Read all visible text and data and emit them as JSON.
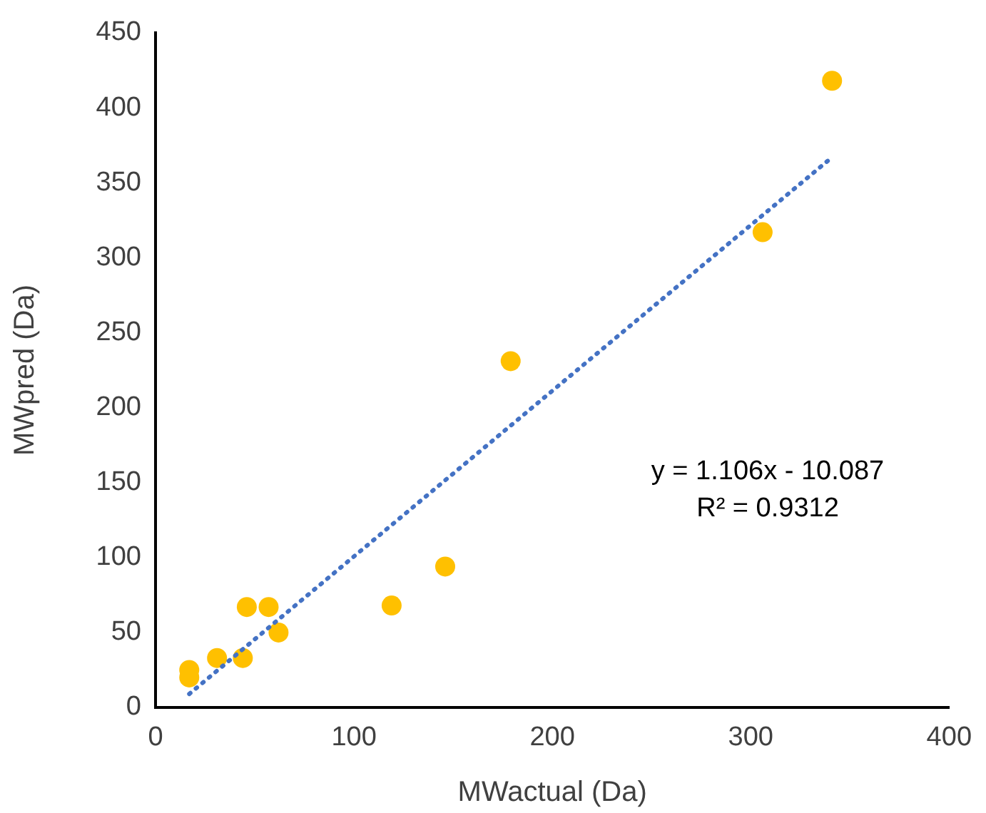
{
  "chart_data": {
    "type": "scatter",
    "xlabel": "MWactual (Da)",
    "ylabel": "MWpred (Da)",
    "xlim": [
      0,
      400
    ],
    "xticks": [
      0,
      100,
      200,
      300,
      400
    ],
    "ylim": [
      0,
      450
    ],
    "yticks": [
      0,
      50,
      100,
      150,
      200,
      250,
      300,
      350,
      400,
      450
    ],
    "grid": false,
    "legend": false,
    "marker": "circle",
    "series": [
      {
        "color": "#ffc000",
        "x": [
          17,
          17,
          31,
          44,
          46,
          57,
          62,
          119,
          146,
          179,
          306,
          341
        ],
        "values": [
          20,
          25,
          33,
          33,
          67,
          67,
          50,
          68,
          94,
          231,
          317,
          418
        ]
      },
      {
        "type": "line",
        "color": "#4472c4",
        "line_style": "dotted",
        "marker": "none",
        "x": [
          17,
          341
        ],
        "values": [
          9,
          367
        ]
      }
    ],
    "annotations": [
      "y = 1.106x - 10.087",
      "R² = 0.9312"
    ]
  }
}
